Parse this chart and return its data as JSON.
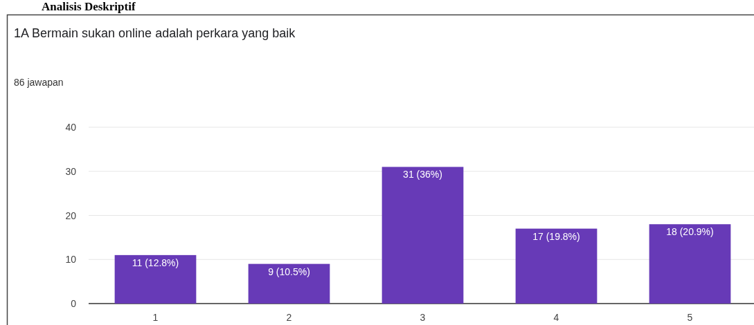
{
  "chart_data": {
    "type": "bar",
    "title": "1A Bermain sukan online adalah perkara yang baik",
    "subtitle": "86 jawapan",
    "annotations": [
      "Analisis Deskriptif"
    ],
    "categories": [
      "1",
      "2",
      "3",
      "4",
      "5"
    ],
    "values": [
      11,
      9,
      31,
      17,
      18
    ],
    "value_labels": [
      "11 (12.8%)",
      "9 (10.5%)",
      "31 (36%)",
      "17 (19.8%)",
      "18 (20.9%)"
    ],
    "color": "#673ab7",
    "ylim": [
      0,
      40
    ],
    "yticks": [
      0,
      10,
      20,
      30,
      40
    ],
    "grid": "y"
  }
}
